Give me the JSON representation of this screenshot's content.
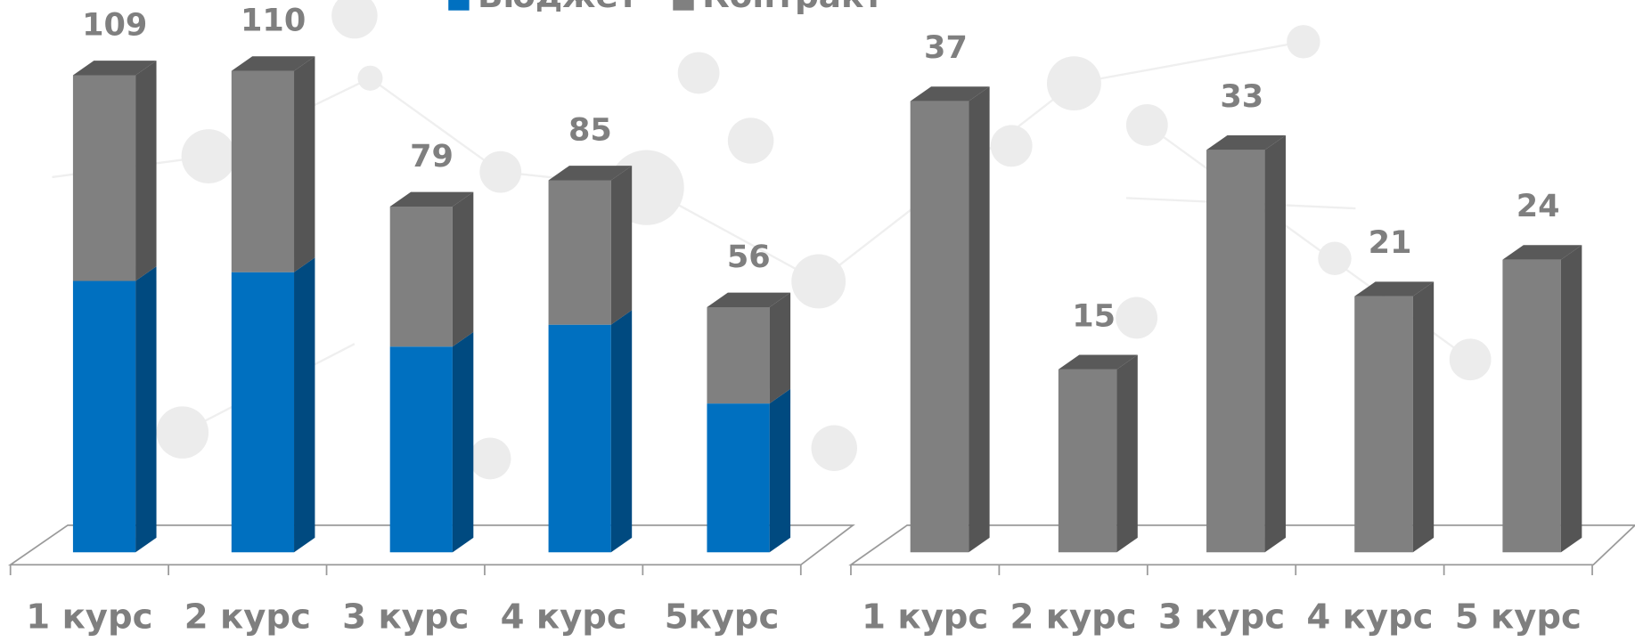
{
  "chart_data": [
    {
      "type": "bar",
      "stacked": true,
      "categories": [
        "1 курс",
        "2 курс",
        "3 курс",
        "4 курс",
        "5курс"
      ],
      "series": [
        {
          "name": "Бюджет",
          "color": "#0070c0",
          "side_color": "#004a80",
          "values": [
            62,
            64,
            47,
            52,
            34
          ]
        },
        {
          "name": "Контракт",
          "color": "#808080",
          "side_color": "#555555",
          "values": [
            47,
            46,
            32,
            33,
            22
          ]
        }
      ],
      "totals": [
        109,
        110,
        79,
        85,
        56
      ],
      "ylim": [
        0,
        120
      ]
    },
    {
      "type": "bar",
      "categories": [
        "1 курс",
        "2 курс",
        "3 курс",
        "4 курс",
        "5 курс"
      ],
      "values": [
        37,
        15,
        33,
        21,
        24
      ],
      "color": "#808080",
      "side_color": "#555555",
      "ylim": [
        0,
        40
      ]
    }
  ]
}
